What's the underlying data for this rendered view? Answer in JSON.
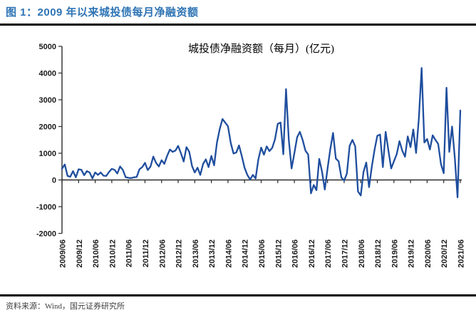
{
  "figure": {
    "header_title": "图 1：2009 年以来城投债每月净融资额",
    "source": "资料来源：Wind，国元证券研究所"
  },
  "colors": {
    "header_blue": "#2E74B5",
    "line_blue": "#1F4E9E",
    "axis_black": "#2b2b2b",
    "rule_black": "#000000"
  },
  "chart_data": {
    "type": "line",
    "title": "城投债净融资额（每月）(亿元)",
    "x_start": "2009/06",
    "x_frequency": "monthly",
    "x_tick_labels": [
      "2009/06",
      "2009/12",
      "2010/06",
      "2010/12",
      "2011/06",
      "2011/12",
      "2012/06",
      "2012/12",
      "2013/06",
      "2013/12",
      "2014/06",
      "2014/12",
      "2015/06",
      "2015/12",
      "2016/06",
      "2016/12",
      "2017/06",
      "2017/12",
      "2018/06",
      "2018/12",
      "2019/06",
      "2019/12",
      "2020/06",
      "2020/12",
      "2021/06"
    ],
    "ylim": [
      -2000,
      5000
    ],
    "y_ticks": [
      -2000,
      -1000,
      0,
      1000,
      2000,
      3000,
      4000,
      5000
    ],
    "grid": false,
    "legend": "none",
    "line_color": "#1F4E9E",
    "series": [
      {
        "name": "城投债净融资额（每月）(亿元)",
        "values": [
          420,
          580,
          150,
          120,
          330,
          100,
          400,
          380,
          180,
          330,
          280,
          60,
          280,
          190,
          280,
          160,
          150,
          300,
          415,
          380,
          240,
          505,
          380,
          105,
          80,
          70,
          100,
          110,
          400,
          480,
          640,
          370,
          500,
          875,
          640,
          505,
          740,
          600,
          900,
          1140,
          1050,
          1100,
          1275,
          1000,
          690,
          1230,
          1050,
          520,
          280,
          460,
          190,
          600,
          770,
          480,
          900,
          550,
          1390,
          1900,
          2280,
          2150,
          2010,
          1390,
          990,
          1030,
          1290,
          900,
          460,
          190,
          15,
          190,
          60,
          770,
          1210,
          945,
          1255,
          1080,
          1200,
          1520,
          2100,
          2150,
          960,
          3400,
          1500,
          430,
          1000,
          1600,
          1800,
          1500,
          1100,
          950,
          -500,
          -190,
          -380,
          790,
          310,
          -360,
          430,
          1150,
          1760,
          800,
          700,
          90,
          -20,
          240,
          1280,
          1500,
          1260,
          -430,
          -580,
          300,
          650,
          -270,
          500,
          1140,
          1650,
          1700,
          480,
          1800,
          1100,
          430,
          700,
          960,
          1450,
          1100,
          870,
          1630,
          1230,
          1890,
          1010,
          2300,
          4190,
          1400,
          1530,
          1140,
          1670,
          1500,
          1350,
          600,
          250,
          3450,
          1050,
          2000,
          850,
          -650,
          2600
        ]
      }
    ]
  }
}
